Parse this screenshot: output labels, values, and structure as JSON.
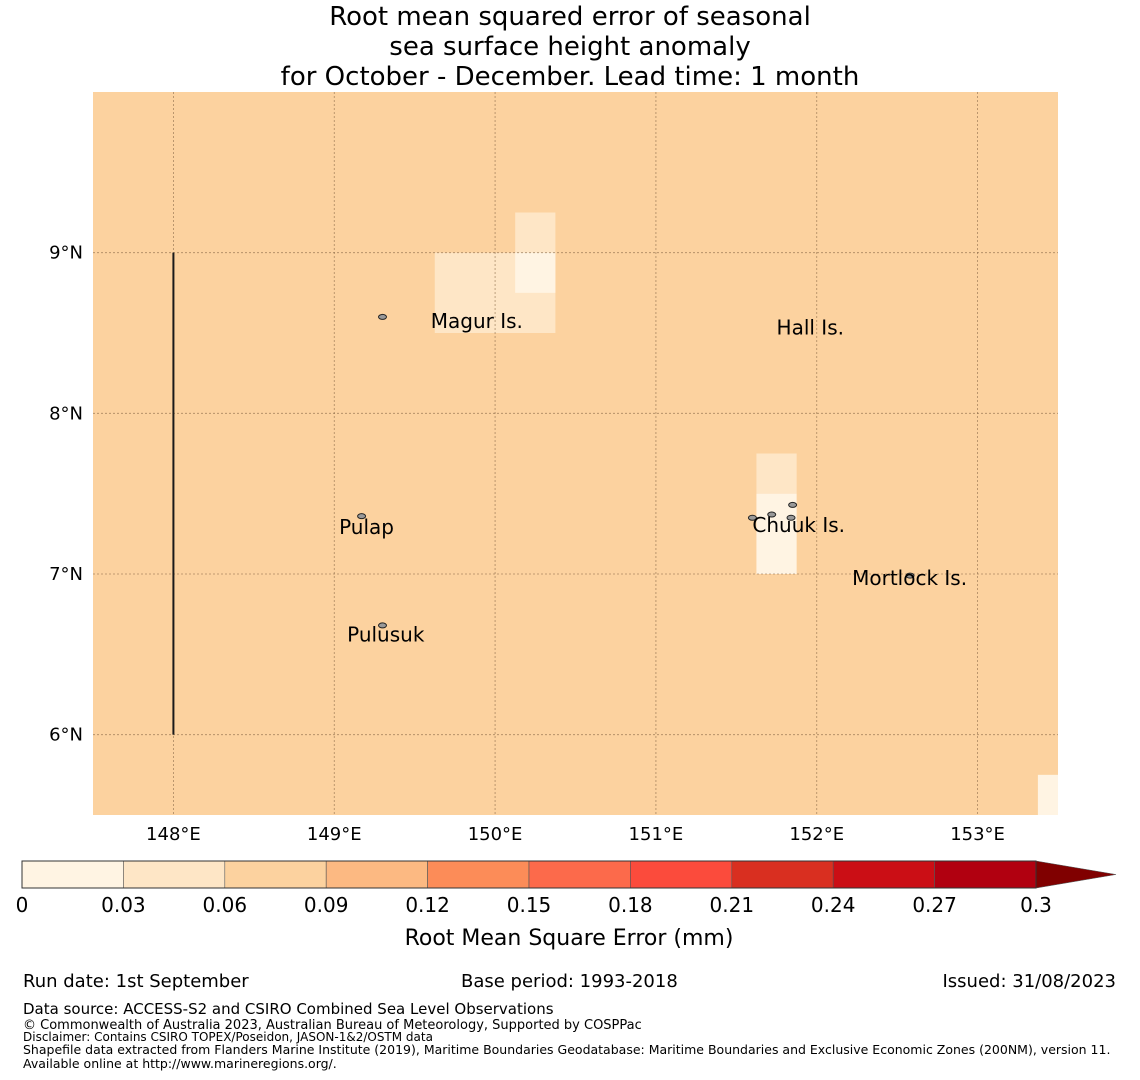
{
  "title": {
    "line1": "Root mean squared error of seasonal",
    "line2": "sea surface height anomaly",
    "line3": "for October - December. Lead time: 1 month"
  },
  "map": {
    "lon_range": [
      147.5,
      153.5
    ],
    "lat_range": [
      5.5,
      10.0
    ],
    "background_color": "#fcd29f",
    "grid": true,
    "lon_ticks": [
      {
        "value": 148,
        "label": "148°E"
      },
      {
        "value": 149,
        "label": "149°E"
      },
      {
        "value": 150,
        "label": "150°E"
      },
      {
        "value": 151,
        "label": "151°E"
      },
      {
        "value": 152,
        "label": "152°E"
      },
      {
        "value": 153,
        "label": "153°E"
      }
    ],
    "lat_ticks": [
      {
        "value": 9,
        "label": "9°N"
      },
      {
        "value": 8,
        "label": "8°N"
      },
      {
        "value": 7,
        "label": "7°N"
      },
      {
        "value": 6,
        "label": "6°N"
      }
    ],
    "cells": [
      {
        "lon0": 149.625,
        "lon1": 150.375,
        "lat0": 8.5,
        "lat1": 9.0,
        "color": "#fee6c6"
      },
      {
        "lon0": 150.125,
        "lon1": 150.375,
        "lat0": 9.0,
        "lat1": 9.25,
        "color": "#fee6c6"
      },
      {
        "lon0": 150.125,
        "lon1": 150.375,
        "lat0": 8.75,
        "lat1": 9.0,
        "color": "#fff4e3"
      },
      {
        "lon0": 151.625,
        "lon1": 151.875,
        "lat0": 7.5,
        "lat1": 7.75,
        "color": "#fee6c6"
      },
      {
        "lon0": 151.625,
        "lon1": 151.875,
        "lat0": 7.0,
        "lat1": 7.5,
        "color": "#fff4e3"
      },
      {
        "lon0": 153.375,
        "lon1": 153.5,
        "lat0": 5.5,
        "lat1": 5.75,
        "color": "#fff4e3"
      }
    ],
    "boundary_line": {
      "lon": 148.0,
      "lat0": 6.0,
      "lat1": 9.0
    },
    "islands": [
      {
        "name": "Magur Is.",
        "lon": 149.6,
        "lat": 8.53
      },
      {
        "name": "Hall Is.",
        "lon": 151.75,
        "lat": 8.49
      },
      {
        "name": "Pulap",
        "lon": 149.03,
        "lat": 7.25
      },
      {
        "name": "Chuuk Is.",
        "lon": 151.6,
        "lat": 7.26
      },
      {
        "name": "Mortlock Is.",
        "lon": 152.22,
        "lat": 6.93
      },
      {
        "name": "Pulusuk",
        "lon": 149.08,
        "lat": 6.58
      }
    ],
    "island_markers": [
      {
        "lon": 149.3,
        "lat": 8.6
      },
      {
        "lon": 149.17,
        "lat": 7.36
      },
      {
        "lon": 149.3,
        "lat": 6.68
      },
      {
        "lon": 151.6,
        "lat": 7.35
      },
      {
        "lon": 151.72,
        "lat": 7.37
      },
      {
        "lon": 151.85,
        "lat": 7.43
      },
      {
        "lon": 151.84,
        "lat": 7.35
      },
      {
        "lon": 152.58,
        "lat": 6.99
      }
    ]
  },
  "colorbar": {
    "boundaries": [
      0,
      0.03,
      0.06,
      0.09,
      0.12,
      0.15,
      0.18,
      0.21,
      0.24,
      0.27,
      0.3
    ],
    "tick_labels": [
      "0",
      "0.03",
      "0.06",
      "0.09",
      "0.12",
      "0.15",
      "0.18",
      "0.21",
      "0.24",
      "0.27",
      "0.3"
    ],
    "colors": [
      "#fff4e3",
      "#fee6c6",
      "#fcd29f",
      "#fcb982",
      "#fc8c58",
      "#fc6a4b",
      "#fb4b3c",
      "#d92f20",
      "#cb0e15",
      "#b10010"
    ],
    "extend_color": "#800000",
    "label": "Root Mean Square Error (mm)"
  },
  "footer": {
    "run_date": "Run date: 1st September",
    "base_period": "Base period: 1993-2018",
    "issued": "Issued: 31/08/2023",
    "data_source": "Data source: ACCESS-S2 and CSIRO Combined Sea Level Observations",
    "copyright": "© Commonwealth of Australia 2023, Australian Bureau of Meteorology, Supported by COSPPac",
    "disclaimer": "Disclaimer: Contains CSIRO TOPEX/Poseidon, JASON-1&2/OSTM data",
    "shapefile": "Shapefile data extracted from Flanders Marine Institute (2019), Maritime Boundaries Geodatabase: Maritime Boundaries and Exclusive Economic Zones (200NM), version 11. Available online at http://www.marineregions.org/."
  }
}
